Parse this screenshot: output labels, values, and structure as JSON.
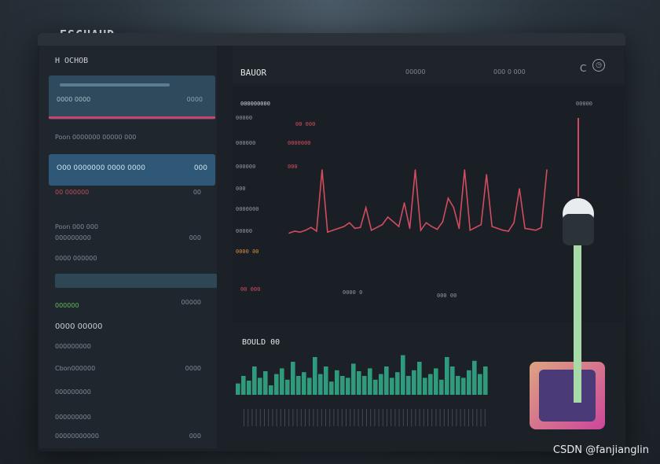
{
  "brand": "ESCHAUD",
  "sidebar": {
    "title": "H ОСНОВ",
    "card": {
      "line": "0000 0000",
      "value": "0000"
    },
    "rows": [
      {
        "label": "Poon  0000000   00000  000",
        "value": ""
      },
      {
        "label": "O00 0000000 0000 0000",
        "value": "000"
      },
      {
        "label": "00 000000",
        "value": "00"
      },
      {
        "label": "Poon  000 000",
        "value": ""
      },
      {
        "label": "000000000",
        "value": "000"
      },
      {
        "label": "0000 000000",
        "value": ""
      }
    ],
    "green_label": "000000",
    "green_value": "00000",
    "section": "0000 00000",
    "list": [
      {
        "label": "000000000",
        "value": ""
      },
      {
        "label": "Cbon000000",
        "value": "0000"
      },
      {
        "label": "000000000",
        "value": ""
      },
      {
        "label": "000000000",
        "value": ""
      },
      {
        "label": "00000000000",
        "value": "000"
      }
    ]
  },
  "header": {
    "title": "BAUOR",
    "meta_a": "00000",
    "meta_b": "000 0 000"
  },
  "chart": {
    "label": "000000000",
    "legend_right": "00000",
    "x_labels": [
      "00 000",
      "0000 0",
      "000 00"
    ]
  },
  "bottom": {
    "title": "BOULD 00"
  },
  "watermark": "CSDN @fanjianglin",
  "chart_data": [
    {
      "type": "line",
      "series": [
        {
          "values": [
            3,
            5,
            4,
            6,
            9,
            5,
            70,
            4,
            6,
            8,
            10,
            14,
            8,
            9,
            30,
            6,
            9,
            12,
            20,
            15,
            10,
            35,
            8,
            70,
            6,
            14,
            10,
            7,
            15,
            40,
            30,
            8,
            70,
            6,
            9,
            12,
            65,
            10,
            8,
            6,
            5,
            14,
            50,
            8,
            7,
            6,
            9,
            70
          ]
        }
      ],
      "color": "#d24c5f",
      "ylim": [
        0,
        100
      ]
    },
    {
      "type": "bar",
      "values": [
        12,
        20,
        15,
        30,
        18,
        25,
        10,
        22,
        28,
        16,
        35,
        20,
        24,
        18,
        40,
        22,
        30,
        14,
        26,
        20,
        18,
        33,
        25,
        20,
        28,
        16,
        22,
        30,
        18,
        24,
        42,
        20,
        26,
        35,
        18,
        22,
        28,
        16,
        40,
        30,
        20,
        18,
        26,
        36,
        22,
        30
      ],
      "color": "#2f9a7d",
      "ylim": [
        0,
        50
      ]
    }
  ]
}
